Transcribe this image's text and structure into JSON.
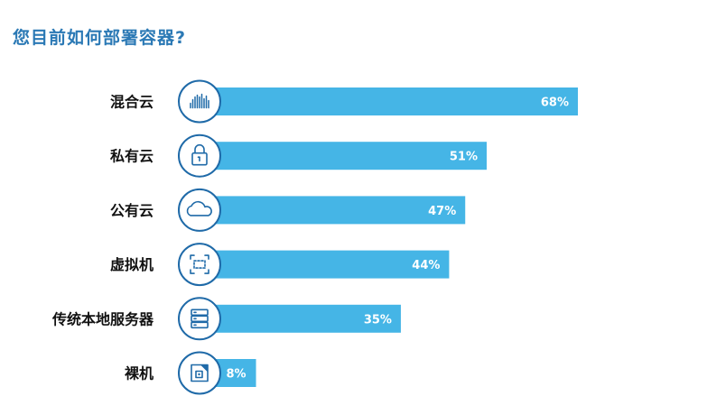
{
  "title": "您目前如何部署容器?",
  "colors": {
    "bar": "#45b5e6",
    "icon_ring": "#1f6aa8",
    "title": "#2b79b5",
    "label": "#111111",
    "value_text": "#ffffff"
  },
  "chart_data": {
    "type": "bar",
    "orientation": "horizontal",
    "title": "您目前如何部署容器?",
    "categories": [
      "混合云",
      "私有云",
      "公有云",
      "虚拟机",
      "传统本地服务器",
      "裸机"
    ],
    "values": [
      68,
      51,
      47,
      44,
      35,
      8
    ],
    "value_labels": [
      "68%",
      "51%",
      "47%",
      "44%",
      "35%",
      "8%"
    ],
    "icons": [
      "sound-wave-icon",
      "padlock-icon",
      "cloud-icon",
      "virtual-machine-icon",
      "server-icon",
      "bare-metal-chip-icon"
    ],
    "unit": "%",
    "xlim": [
      0,
      100
    ],
    "grid": false,
    "legend": "none"
  }
}
